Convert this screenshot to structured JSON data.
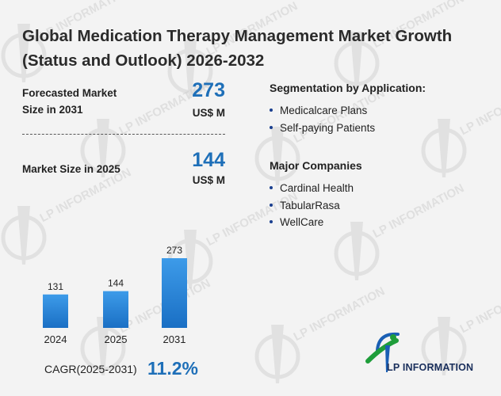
{
  "title": "Global Medication Therapy Management Market Growth (Status and Outlook) 2026-2032",
  "kpis": {
    "forecast_label_line1": "Forecasted Market",
    "forecast_label_line2": "Size in 2031",
    "forecast_value": "273",
    "forecast_unit": "US$ M",
    "current_label": "Market Size in 2025",
    "current_value": "144",
    "current_unit": "US$ M"
  },
  "segmentation": {
    "title": "Segmentation by Application:",
    "items": [
      "Medicalcare Plans",
      "Self-paying Patients"
    ]
  },
  "companies": {
    "title": "Major Companies",
    "items": [
      "Cardinal Health",
      "TabularRasa",
      "WellCare"
    ]
  },
  "chart_data": {
    "type": "bar",
    "categories": [
      "2024",
      "2025",
      "2031"
    ],
    "values": [
      131,
      144,
      273
    ],
    "title": "",
    "xlabel": "",
    "ylabel": "",
    "ylim": [
      0,
      273
    ],
    "grid": false,
    "legend": "none",
    "bar_color_top": "#3d9be9",
    "bar_color_bottom": "#1a6fc4"
  },
  "cagr": {
    "label": "CAGR(2025-2031)",
    "value": "11.2%"
  },
  "logo": {
    "text": "LP INFORMATION",
    "icon": "lp-information-logo-icon",
    "colors": {
      "green": "#1e9d3a",
      "blue": "#1a5fb4",
      "navy": "#1a2f5c"
    }
  },
  "watermark": {
    "text": "LP INFORMATION"
  }
}
